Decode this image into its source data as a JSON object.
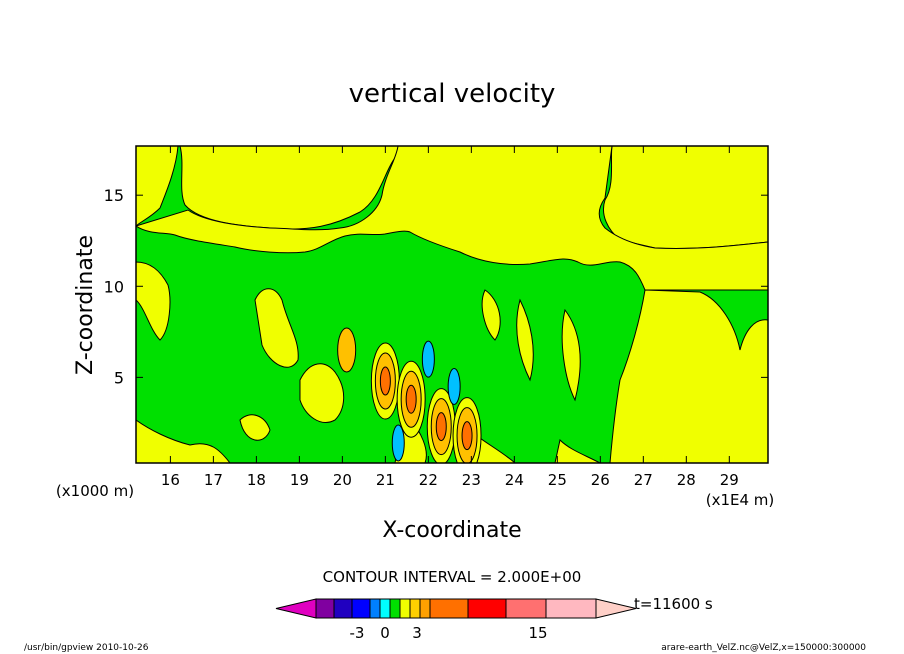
{
  "chart_data": {
    "type": "heatmap",
    "title": "vertical velocity",
    "xlabel": "X-coordinate",
    "ylabel": "Z-coordinate",
    "xlim": [
      15.2,
      29.9
    ],
    "ylim": [
      0.3,
      17.7
    ],
    "x_ticks": [
      "16",
      "17",
      "18",
      "19",
      "20",
      "21",
      "22",
      "23",
      "24",
      "25",
      "26",
      "27",
      "28",
      "29"
    ],
    "y_ticks": [
      "5",
      "10",
      "15"
    ],
    "x_unit_left": "(x1000 m)",
    "x_unit_right": "(x1E4 m)",
    "contour_interval_text": "CONTOUR INTERVAL = 2.000E+00",
    "time_text": "t=11600 s",
    "legend_labels": [
      "-3",
      "0",
      "3",
      "15"
    ],
    "colors": {
      "positive_weak": "#f0ff00",
      "negative_weak": "#00e000",
      "moderate_up": "#ffc000",
      "strong_up": "#ff7000",
      "moderate_down": "#00c0ff",
      "contour_line": "#000000"
    },
    "colorbar_colors": [
      "#8000a0",
      "#2000c0",
      "#0000ff",
      "#0080ff",
      "#00ffff",
      "#00e000",
      "#f0ff00",
      "#ffd000",
      "#ffa000",
      "#ff7000",
      "#ff0000",
      "#ff7070",
      "#ffb8c0"
    ],
    "colorbar_end_left": "#e000c0",
    "colorbar_end_right": "#ffd0c8",
    "cells": [
      {
        "x": 21.0,
        "z": 4.8,
        "v": 5
      },
      {
        "x": 21.6,
        "z": 3.8,
        "v": 7
      },
      {
        "x": 22.3,
        "z": 2.3,
        "v": 7
      },
      {
        "x": 22.9,
        "z": 1.8,
        "v": 5
      },
      {
        "x": 20.1,
        "z": 6.5,
        "v": 3
      },
      {
        "x": 22.0,
        "z": 6.0,
        "v": -3
      },
      {
        "x": 22.6,
        "z": 4.5,
        "v": -3
      },
      {
        "x": 21.3,
        "z": 1.4,
        "v": -3
      }
    ]
  },
  "footer": {
    "left": "/usr/bin/gpview  2010-10-26",
    "right": "arare-earth_VelZ.nc@VelZ,x=150000:300000"
  }
}
